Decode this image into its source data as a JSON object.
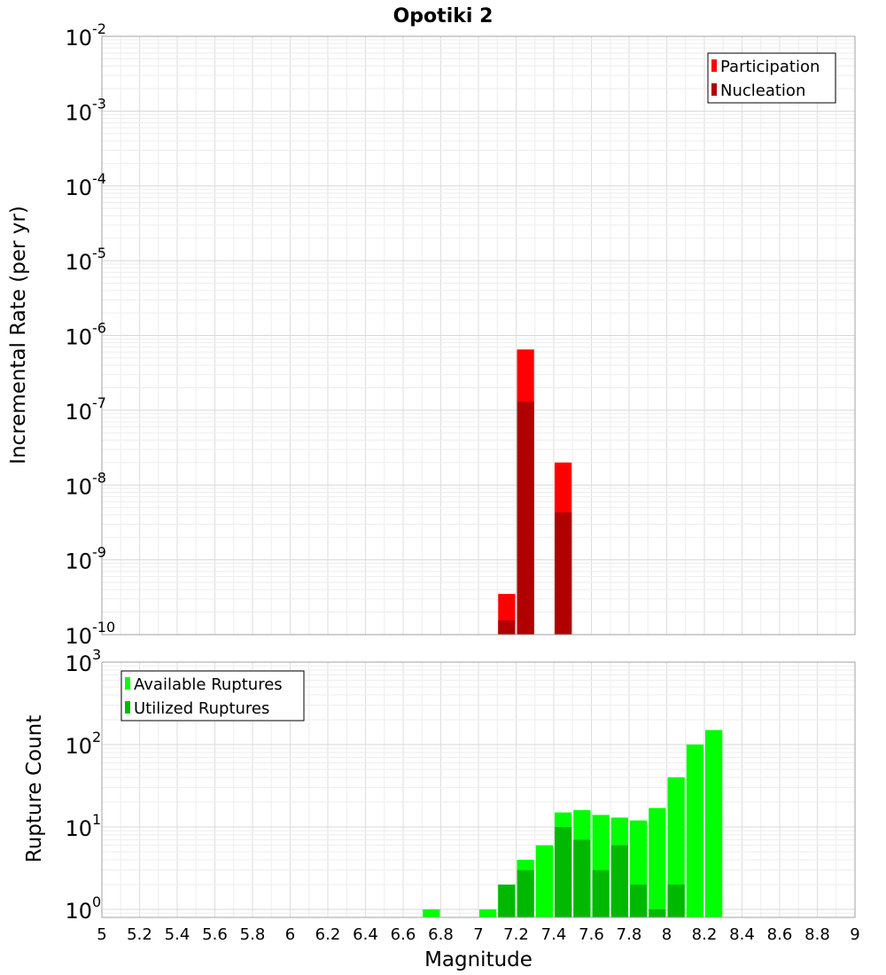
{
  "chart_data": [
    {
      "type": "bar",
      "title": "Opotiki 2",
      "xlabel": "",
      "ylabel": "Incremental Rate (per yr)",
      "y_scale": "log",
      "xlim": [
        5,
        9
      ],
      "ylim": [
        1e-10,
        0.01
      ],
      "grid": true,
      "legend_position": "top-right",
      "bar_width": 0.1,
      "series": [
        {
          "name": "Participation",
          "color": "#ff0000",
          "x": [
            7.15,
            7.25,
            7.45
          ],
          "values": [
            3.5e-10,
            6.5e-07,
            2e-08
          ]
        },
        {
          "name": "Nucleation",
          "color": "#b00000",
          "x": [
            7.15,
            7.25,
            7.45
          ],
          "values": [
            1.55e-10,
            1.3e-07,
            4.3e-09
          ]
        }
      ],
      "y_ticks": [
        {
          "exp": "-10",
          "value": 1e-10
        },
        {
          "exp": "-9",
          "value": 1e-09
        },
        {
          "exp": "-8",
          "value": 1e-08
        },
        {
          "exp": "-7",
          "value": 1e-07
        },
        {
          "exp": "-6",
          "value": 1e-06
        },
        {
          "exp": "-5",
          "value": 1e-05
        },
        {
          "exp": "-4",
          "value": 0.0001
        },
        {
          "exp": "-3",
          "value": 0.001
        },
        {
          "exp": "-2",
          "value": 0.01
        }
      ]
    },
    {
      "type": "bar",
      "title": "",
      "xlabel": "Magnitude",
      "ylabel": "Rupture Count",
      "y_scale": "log",
      "xlim": [
        5,
        9
      ],
      "ylim": [
        0.8,
        1000
      ],
      "grid": true,
      "legend_position": "top-left",
      "bar_width": 0.1,
      "series": [
        {
          "name": "Available Ruptures",
          "color": "#00ff00",
          "x": [
            6.75,
            7.05,
            7.15,
            7.25,
            7.35,
            7.45,
            7.55,
            7.65,
            7.75,
            7.85,
            7.95,
            8.05,
            8.15,
            8.25
          ],
          "values": [
            1,
            1,
            2,
            4,
            6,
            15,
            16,
            14,
            13,
            12,
            17,
            40,
            100,
            150
          ]
        },
        {
          "name": "Utilized Ruptures",
          "color": "#00b800",
          "x": [
            7.15,
            7.25,
            7.45,
            7.55,
            7.65,
            7.75,
            7.85,
            7.95,
            8.05
          ],
          "values": [
            2,
            3,
            10,
            7,
            3,
            6,
            2,
            1,
            2
          ]
        }
      ],
      "y_ticks": [
        {
          "exp": "0",
          "value": 1
        },
        {
          "exp": "1",
          "value": 10
        },
        {
          "exp": "2",
          "value": 100
        },
        {
          "exp": "3",
          "value": 1000
        }
      ],
      "x_ticks": [
        "5",
        "5.2",
        "5.4",
        "5.6",
        "5.8",
        "6",
        "6.2",
        "6.4",
        "6.6",
        "6.8",
        "7",
        "7.2",
        "7.4",
        "7.6",
        "7.8",
        "8",
        "8.2",
        "8.4",
        "8.6",
        "8.8",
        "9"
      ]
    }
  ]
}
